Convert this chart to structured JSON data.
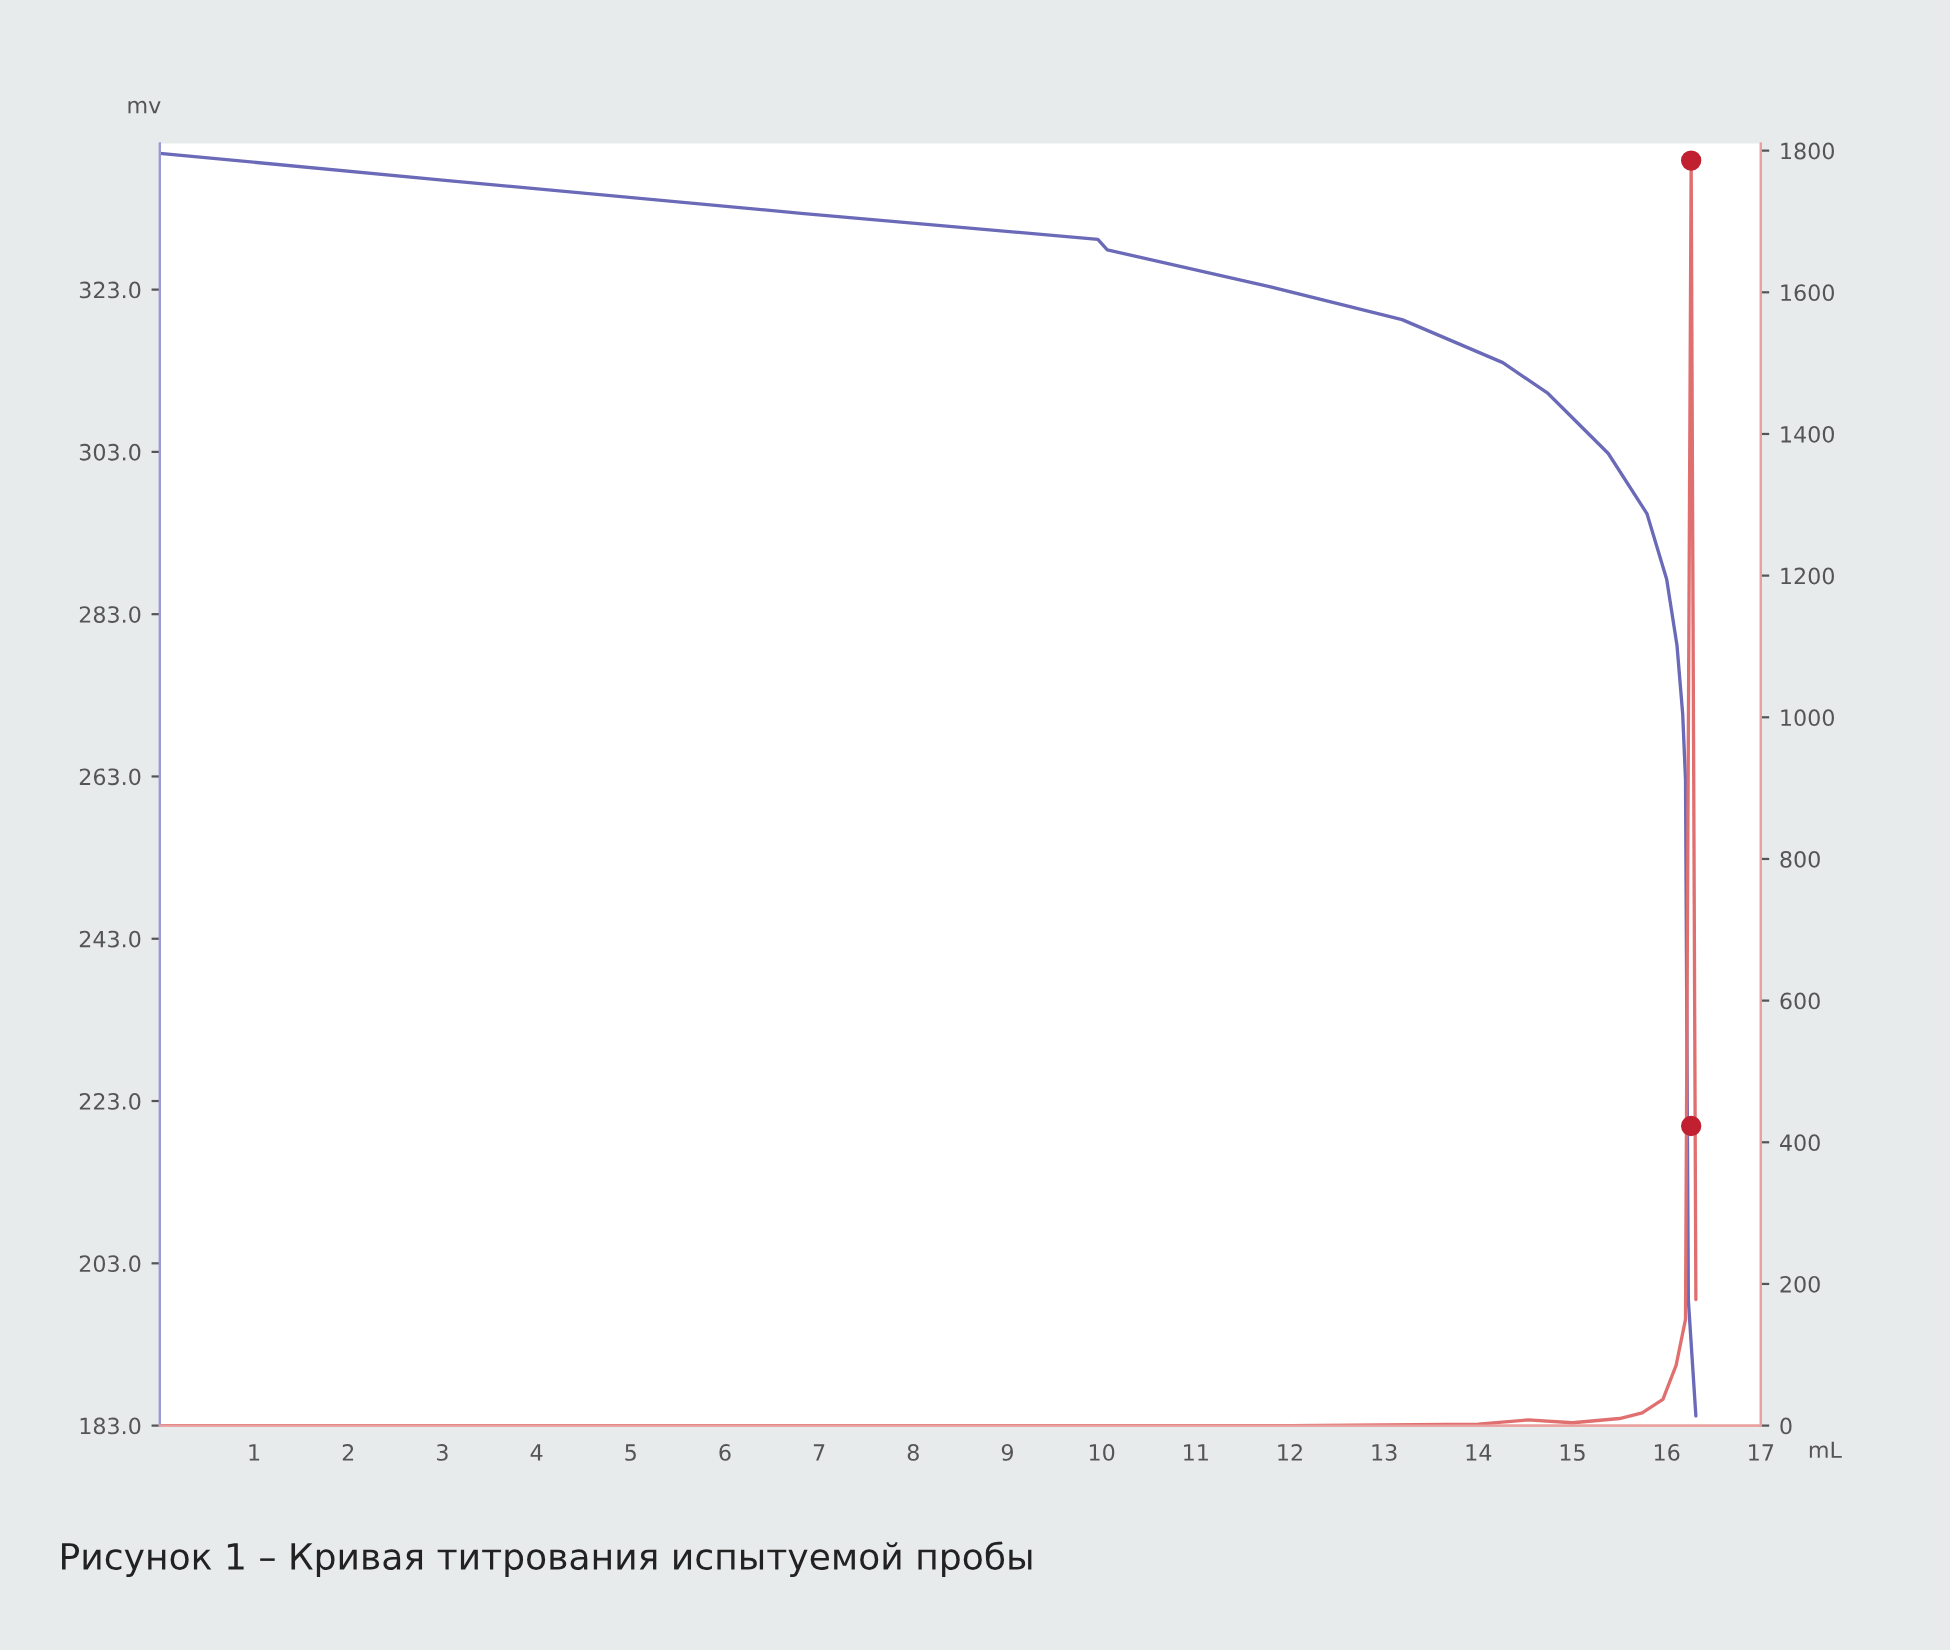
{
  "chart_data": {
    "type": "line",
    "ylabel": "mv",
    "xlabel": "mL",
    "annotations": [
      "Рисунок 1 – Кривая титрования испытуемой пробы"
    ],
    "xlim": [
      0,
      17
    ],
    "xticks": [
      1,
      2,
      3,
      4,
      5,
      6,
      7,
      8,
      9,
      10,
      11,
      12,
      13,
      14,
      15,
      16,
      17
    ],
    "ylim": [
      183,
      341
    ],
    "yticks": [
      {
        "value": 183,
        "label": "183.0"
      },
      {
        "value": 203,
        "label": "203.0"
      },
      {
        "value": 223,
        "label": "223.0"
      },
      {
        "value": 243,
        "label": "243.0"
      },
      {
        "value": 263,
        "label": "263.0"
      },
      {
        "value": 283,
        "label": "283.0"
      },
      {
        "value": 303,
        "label": "303.0"
      },
      {
        "value": 323,
        "label": "323.0"
      }
    ],
    "y2lim": [
      0,
      1810
    ],
    "y2ticks": [
      0,
      200,
      400,
      600,
      800,
      1000,
      1200,
      1400,
      1600,
      1800
    ],
    "grid": false,
    "legend": false,
    "series": [
      {
        "color": "#6a6ab8",
        "x": [
          0,
          3,
          6.81,
          9.96,
          10.06,
          11.77,
          13.19,
          14.26,
          14.74,
          15.38,
          15.79,
          16.0,
          16.11,
          16.17,
          16.2,
          16.23,
          16.31
        ],
        "values": [
          339.8,
          336.5,
          332.4,
          329.2,
          327.9,
          323.4,
          319.3,
          314.0,
          310.2,
          302.8,
          295.4,
          287.3,
          279.1,
          270.7,
          262.6,
          198.5,
          184.2
        ]
      },
      {
        "color": "#e07070",
        "axis": "y2",
        "x": [
          0,
          10,
          12,
          14,
          14.53,
          15,
          15.5,
          15.74,
          15.96,
          16.1,
          16.2,
          16.26,
          16.31
        ],
        "values": [
          0,
          0,
          0,
          2,
          8,
          4,
          10,
          18,
          37,
          85,
          150,
          1786,
          178
        ]
      },
      {
        "type": "scatter",
        "color": "#c02030",
        "axis": "y2",
        "marker": "circle",
        "x": [
          16.26,
          16.26
        ],
        "values": [
          1786,
          423
        ]
      }
    ]
  }
}
